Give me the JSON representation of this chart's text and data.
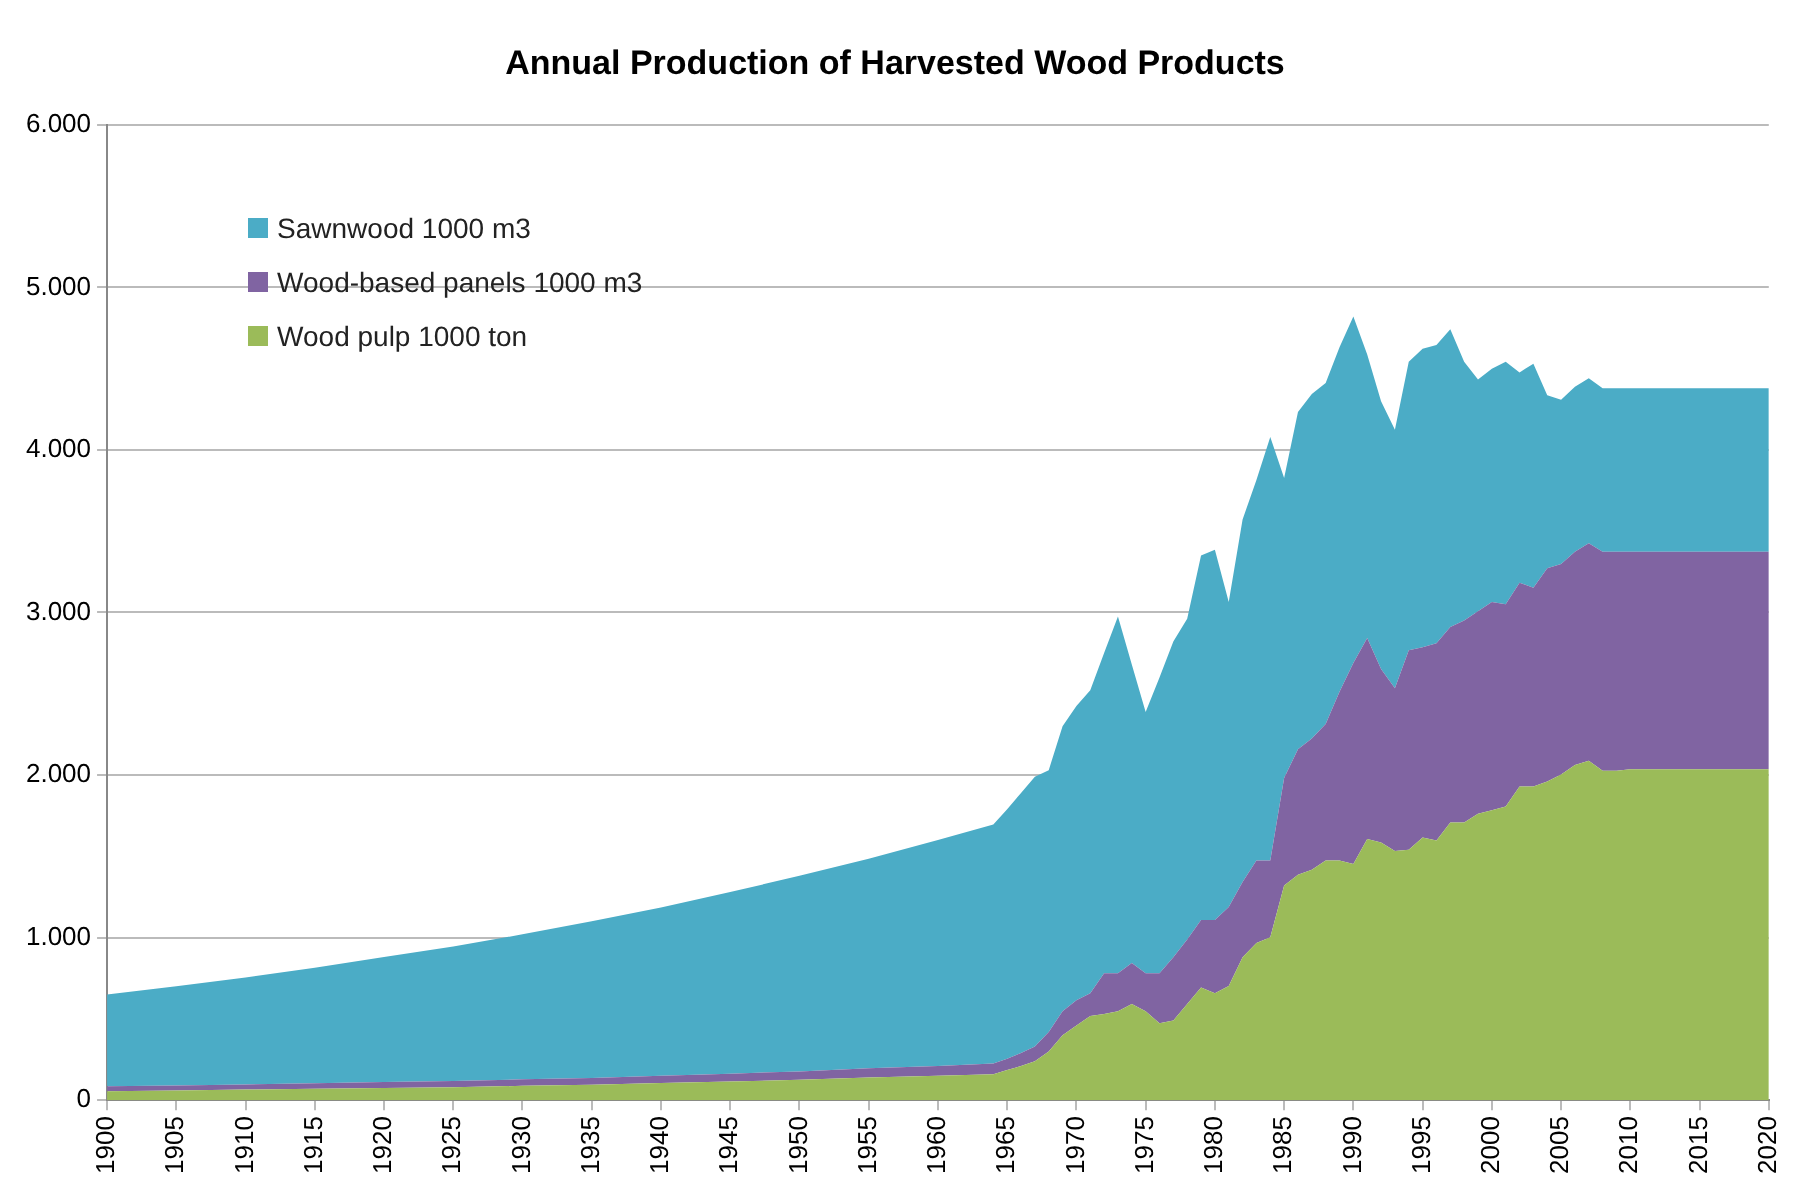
{
  "chart_data": {
    "type": "area",
    "title": "Annual Production of Harvested Wood Products",
    "stacked": true,
    "grid": "y",
    "legend": "top left",
    "x": [
      1900,
      1905,
      1910,
      1915,
      1920,
      1925,
      1930,
      1935,
      1940,
      1945,
      1950,
      1955,
      1960,
      1964,
      1965,
      1966,
      1967,
      1968,
      1969,
      1970,
      1971,
      1972,
      1973,
      1974,
      1975,
      1976,
      1977,
      1978,
      1979,
      1980,
      1981,
      1982,
      1983,
      1984,
      1985,
      1986,
      1987,
      1988,
      1989,
      1990,
      1991,
      1992,
      1993,
      1994,
      1995,
      1996,
      1997,
      1998,
      1999,
      2000,
      2001,
      2002,
      2003,
      2004,
      2005,
      2006,
      2007,
      2008,
      2009,
      2010,
      2011,
      2012,
      2013,
      2014,
      2015,
      2016,
      2017,
      2018,
      2019,
      2020
    ],
    "series": [
      {
        "name": "Wood pulp 1000 ton",
        "color": "#9bbb59",
        "values": [
          55,
          60,
          65,
          70,
          75,
          80,
          88,
          95,
          105,
          115,
          125,
          140,
          150,
          160,
          185,
          210,
          240,
          300,
          400,
          459,
          517,
          530,
          547,
          592,
          547,
          473,
          490,
          592,
          693,
          658,
          702,
          879,
          967,
          1002,
          1320,
          1386,
          1417,
          1475,
          1475,
          1453,
          1607,
          1585,
          1532,
          1540,
          1616,
          1598,
          1708,
          1708,
          1762,
          1784,
          1806,
          1929,
          1929,
          1960,
          2004,
          2062,
          2088,
          2026,
          2026,
          2035,
          2035,
          2035,
          2035,
          2035,
          2035,
          2035,
          2035,
          2035,
          2035,
          2035
        ]
      },
      {
        "name": "Wood-based panels 1000 m3",
        "color": "#8064a2",
        "values": [
          30,
          30,
          32,
          34,
          36,
          38,
          40,
          42,
          45,
          48,
          52,
          56,
          60,
          65,
          70,
          80,
          90,
          120,
          147,
          155,
          141,
          251,
          234,
          251,
          234,
          308,
          389,
          397,
          415,
          450,
          486,
          463,
          508,
          473,
          662,
          773,
          808,
          839,
          1037,
          1236,
          1236,
          1068,
          1002,
          1228,
          1170,
          1212,
          1202,
          1242,
          1245,
          1280,
          1245,
          1254,
          1223,
          1312,
          1294,
          1311,
          1338,
          1347,
          1347,
          1338,
          1338,
          1338,
          1338,
          1338,
          1338,
          1338,
          1338,
          1338,
          1338,
          1338
        ]
      },
      {
        "name": "Sawnwood 1000 m3",
        "color": "#4bacc6",
        "values": [
          565,
          610,
          658,
          711,
          769,
          827,
          892,
          963,
          1035,
          1117,
          1203,
          1289,
          1390,
          1470,
          1535,
          1600,
          1660,
          1610,
          1753,
          1810,
          1863,
          1969,
          2195,
          1837,
          1607,
          1819,
          1942,
          1973,
          2243,
          2278,
          1876,
          2230,
          2340,
          2604,
          1846,
          2075,
          2119,
          2097,
          2119,
          2132,
          1744,
          1647,
          1590,
          1775,
          1837,
          1835,
          1832,
          1593,
          1426,
          1435,
          1492,
          1294,
          1378,
          1064,
          1011,
          1016,
          1015,
          1007,
          1007,
          1007,
          1007,
          1007,
          1007,
          1007,
          1007,
          1007,
          1007,
          1007,
          1007,
          1007
        ]
      }
    ],
    "xlim": [
      1900,
      2020
    ],
    "xticks": [
      1900,
      1905,
      1910,
      1915,
      1920,
      1925,
      1930,
      1935,
      1940,
      1945,
      1950,
      1955,
      1960,
      1965,
      1970,
      1975,
      1980,
      1985,
      1990,
      1995,
      2000,
      2005,
      2010,
      2015,
      2020
    ],
    "ylim": [
      0,
      6000
    ],
    "yticks": [
      {
        "value": 0,
        "label": "0"
      },
      {
        "value": 1000,
        "label": "1.000"
      },
      {
        "value": 2000,
        "label": "2.000"
      },
      {
        "value": 3000,
        "label": "3.000"
      },
      {
        "value": 4000,
        "label": "4.000"
      },
      {
        "value": 5000,
        "label": "5.000"
      },
      {
        "value": 6000,
        "label": "6.000"
      }
    ]
  }
}
